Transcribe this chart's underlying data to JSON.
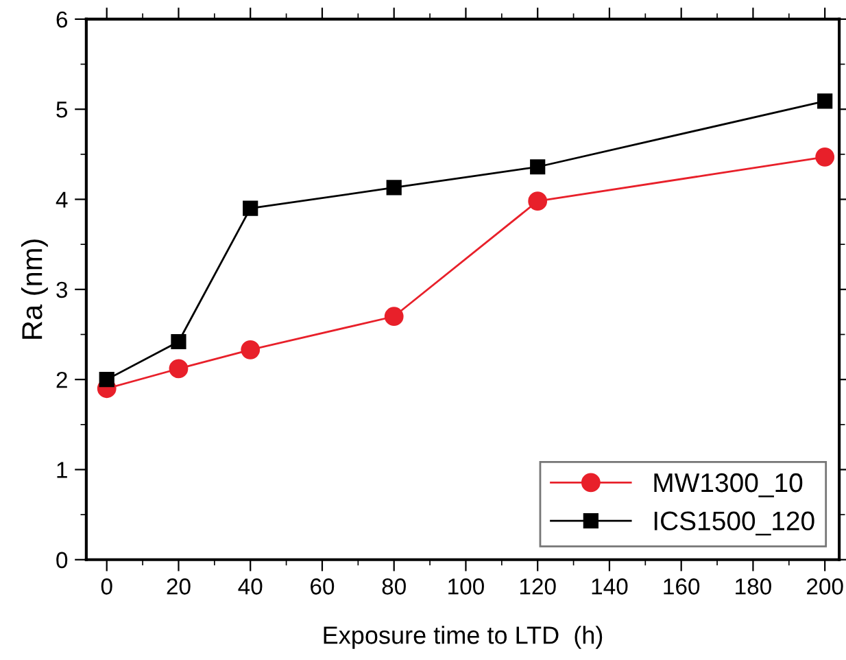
{
  "chart_data": {
    "type": "line",
    "xlabel": "Exposure time to LTD  (h)",
    "ylabel": "Ra (nm)",
    "x": [
      0,
      20,
      40,
      80,
      120,
      200
    ],
    "series": [
      {
        "name": "MW1300_10",
        "color": "#e8202a",
        "marker": "circle",
        "values": [
          1.9,
          2.12,
          2.33,
          2.7,
          3.98,
          4.47
        ]
      },
      {
        "name": "ICS1500_120",
        "color": "#000000",
        "marker": "square",
        "values": [
          2.0,
          2.42,
          3.9,
          4.13,
          4.36,
          5.09
        ]
      }
    ],
    "xlim": [
      -5.7,
      204
    ],
    "xticks": [
      0,
      20,
      40,
      60,
      80,
      100,
      120,
      140,
      160,
      180,
      200
    ],
    "ylim": [
      0,
      6
    ],
    "yticks": [
      0,
      1,
      2,
      3,
      4,
      5,
      6
    ],
    "grid": false,
    "legend": "bottom right",
    "line_style": "solid"
  }
}
